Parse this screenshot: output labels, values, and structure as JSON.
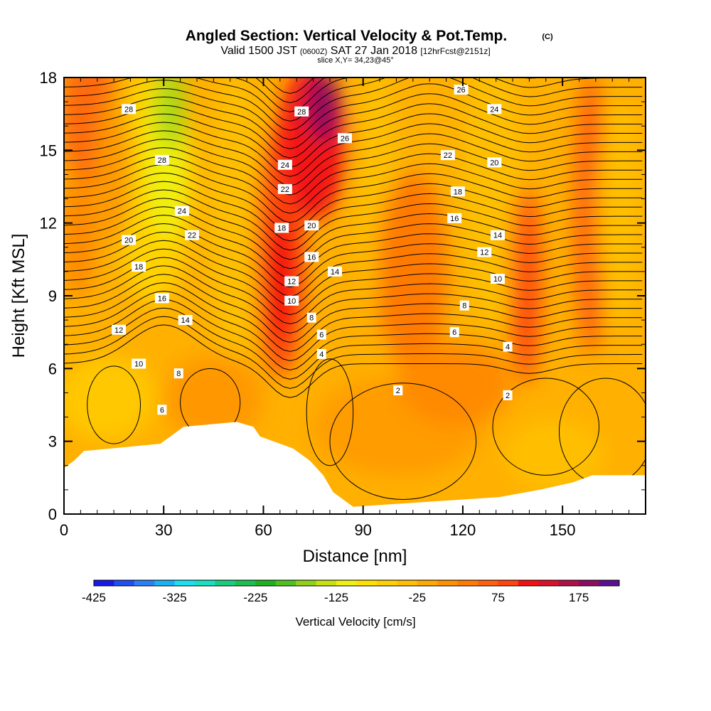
{
  "title": "Angled Section: Vertical Velocity & Pot.Temp.",
  "title_units": "(C)",
  "subtitle_parts": {
    "valid": "Valid 1500 JST",
    "utc": "(0600Z)",
    "date": "SAT 27 Jan 2018",
    "fcst": "[12hrFcst@2151z]"
  },
  "slice": "slice X,Y= 34,23@45°",
  "chart_data": {
    "type": "heatmap",
    "title": "Angled Section: Vertical Velocity & Pot.Temp.",
    "xlabel": "Distance [nm]",
    "ylabel": "Height [Kft MSL]",
    "xlim": [
      0,
      175
    ],
    "ylim": [
      0,
      18
    ],
    "x_ticks": [
      0,
      30,
      60,
      90,
      120,
      150
    ],
    "y_ticks": [
      0,
      3,
      6,
      9,
      12,
      15,
      18
    ],
    "fill_field": "Vertical Velocity [cm/s]",
    "colorbar": {
      "label": "Vertical Velocity [cm/s]",
      "min": -425,
      "max": 225,
      "step": 25,
      "tick_labels": [
        "-425",
        "-325",
        "-225",
        "-125",
        "-25",
        "75",
        "175"
      ],
      "tick_values": [
        -425,
        -325,
        -225,
        -125,
        -25,
        75,
        175
      ],
      "colors": [
        "#1a1ae6",
        "#1f4ff0",
        "#2a7ff5",
        "#1ab0f5",
        "#1ae0f0",
        "#18e0c0",
        "#18cc80",
        "#19c050",
        "#1eb020",
        "#50c020",
        "#90d018",
        "#c8e010",
        "#f0f010",
        "#ffe000",
        "#ffd000",
        "#ffbf00",
        "#ffa800",
        "#ff9000",
        "#ff7a00",
        "#ff6010",
        "#ff4410",
        "#f41010",
        "#d8102a",
        "#b01048",
        "#8c0c60",
        "#5a1090"
      ]
    },
    "contour_field": "Potential Temperature (C)",
    "contour_labels": [
      {
        "x": 19.5,
        "y": 16.7,
        "v": "28"
      },
      {
        "x": 29.5,
        "y": 14.6,
        "v": "28"
      },
      {
        "x": 35.5,
        "y": 12.5,
        "v": "24"
      },
      {
        "x": 38.5,
        "y": 11.5,
        "v": "22"
      },
      {
        "x": 19.5,
        "y": 11.3,
        "v": "20"
      },
      {
        "x": 22.5,
        "y": 10.2,
        "v": "18"
      },
      {
        "x": 29.5,
        "y": 8.9,
        "v": "16"
      },
      {
        "x": 36.5,
        "y": 8.0,
        "v": "14"
      },
      {
        "x": 16.5,
        "y": 7.6,
        "v": "12"
      },
      {
        "x": 22.5,
        "y": 6.2,
        "v": "10"
      },
      {
        "x": 34.5,
        "y": 5.8,
        "v": "8"
      },
      {
        "x": 29.5,
        "y": 4.3,
        "v": "6"
      },
      {
        "x": 71.5,
        "y": 16.6,
        "v": "28"
      },
      {
        "x": 84.5,
        "y": 15.5,
        "v": "26"
      },
      {
        "x": 66.5,
        "y": 14.4,
        "v": "24"
      },
      {
        "x": 66.5,
        "y": 13.4,
        "v": "22"
      },
      {
        "x": 65.5,
        "y": 11.8,
        "v": "18"
      },
      {
        "x": 74.5,
        "y": 11.9,
        "v": "20"
      },
      {
        "x": 74.5,
        "y": 10.6,
        "v": "16"
      },
      {
        "x": 81.5,
        "y": 10.0,
        "v": "14"
      },
      {
        "x": 68.5,
        "y": 9.6,
        "v": "12"
      },
      {
        "x": 68.5,
        "y": 8.8,
        "v": "10"
      },
      {
        "x": 74.5,
        "y": 8.1,
        "v": "8"
      },
      {
        "x": 77.5,
        "y": 7.4,
        "v": "6"
      },
      {
        "x": 77.5,
        "y": 6.6,
        "v": "4"
      },
      {
        "x": 100.5,
        "y": 5.1,
        "v": "2"
      },
      {
        "x": 119.5,
        "y": 17.5,
        "v": "26"
      },
      {
        "x": 129.5,
        "y": 16.7,
        "v": "24"
      },
      {
        "x": 115.5,
        "y": 14.8,
        "v": "22"
      },
      {
        "x": 129.5,
        "y": 14.5,
        "v": "20"
      },
      {
        "x": 118.5,
        "y": 13.3,
        "v": "18"
      },
      {
        "x": 117.5,
        "y": 12.2,
        "v": "16"
      },
      {
        "x": 130.5,
        "y": 11.5,
        "v": "14"
      },
      {
        "x": 126.5,
        "y": 10.8,
        "v": "12"
      },
      {
        "x": 130.5,
        "y": 9.7,
        "v": "10"
      },
      {
        "x": 120.5,
        "y": 8.6,
        "v": "8"
      },
      {
        "x": 117.5,
        "y": 7.5,
        "v": "6"
      },
      {
        "x": 133.5,
        "y": 6.9,
        "v": "4"
      },
      {
        "x": 133.5,
        "y": 4.9,
        "v": "2"
      }
    ],
    "terrain": [
      [
        0,
        1.9
      ],
      [
        3,
        2.2
      ],
      [
        6,
        2.6
      ],
      [
        29,
        2.9
      ],
      [
        32,
        3.2
      ],
      [
        36,
        3.6
      ],
      [
        52,
        3.8
      ],
      [
        57,
        3.6
      ],
      [
        59,
        3.2
      ],
      [
        69,
        2.7
      ],
      [
        74,
        2.2
      ],
      [
        78,
        1.6
      ],
      [
        81,
        0.9
      ],
      [
        84,
        0.6
      ],
      [
        87,
        0.3
      ],
      [
        131,
        0.7
      ],
      [
        143,
        1.0
      ],
      [
        153,
        1.3
      ],
      [
        159,
        1.6
      ],
      [
        175,
        1.6
      ]
    ]
  }
}
